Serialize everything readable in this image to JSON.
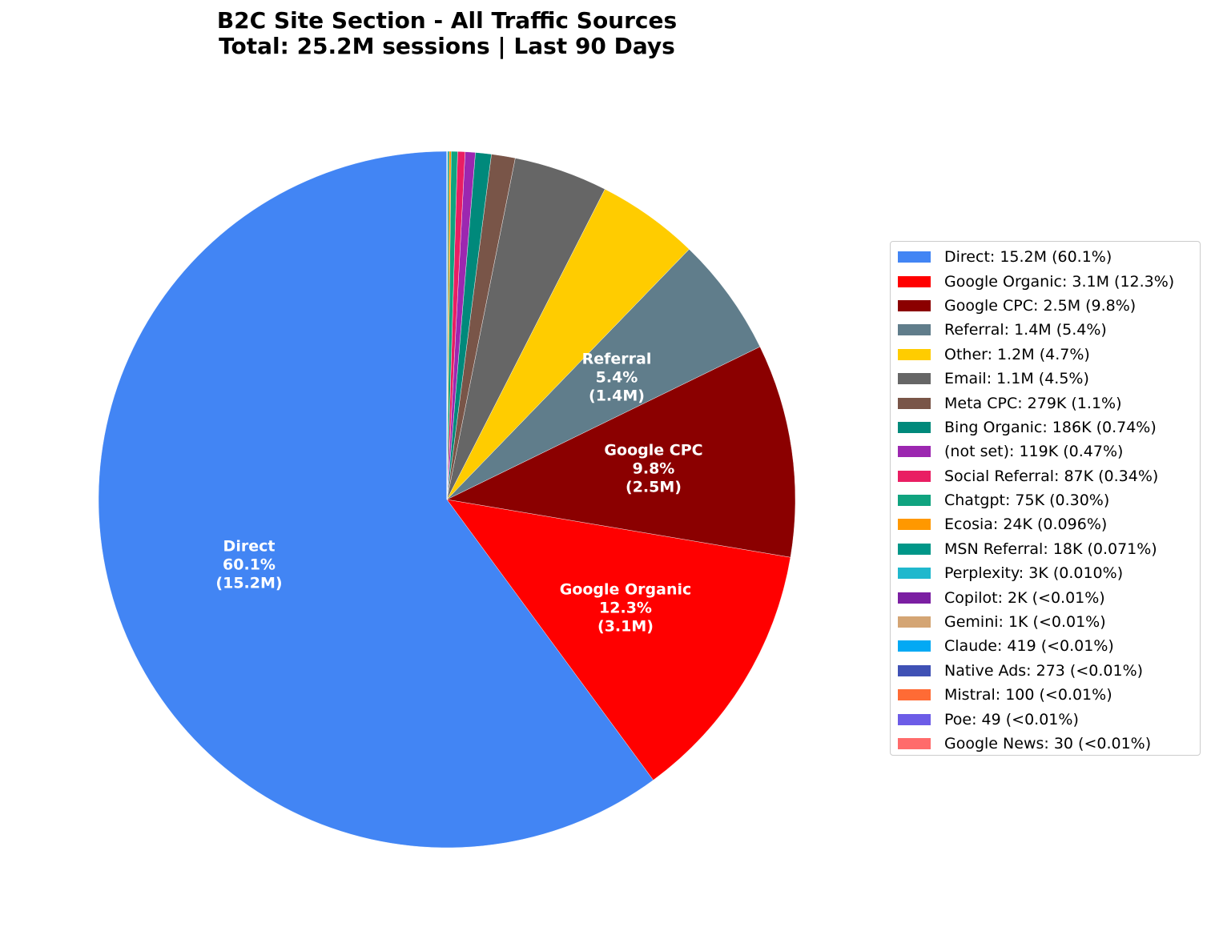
{
  "title": {
    "line1": "B2C Site Section - All Traffic Sources",
    "line2": "Total: 25.2M sessions | Last 90 Days"
  },
  "chart_data": {
    "type": "pie",
    "title": "B2C Site Section - All Traffic Sources\nTotal: 25.2M sessions | Last 90 Days",
    "total_sessions": "25.2M",
    "start_angle": 90,
    "direction": "counterclockwise",
    "legend_position": "right",
    "categories": [
      "Direct",
      "Google Organic",
      "Google CPC",
      "Referral",
      "Other",
      "Email",
      "Meta CPC",
      "Bing Organic",
      "(not set)",
      "Social Referral",
      "Chatgpt",
      "Ecosia",
      "MSN Referral",
      "Perplexity",
      "Copilot",
      "Gemini",
      "Claude",
      "Native Ads",
      "Mistral",
      "Poe",
      "Google News"
    ],
    "values": [
      15200000,
      3100000,
      2500000,
      1400000,
      1200000,
      1100000,
      279000,
      186000,
      119000,
      87000,
      75000,
      24000,
      18000,
      3000,
      2000,
      1000,
      419,
      273,
      100,
      49,
      30
    ],
    "percentages": [
      60.1,
      12.3,
      9.8,
      5.4,
      4.7,
      4.5,
      1.1,
      0.74,
      0.47,
      0.34,
      0.3,
      0.096,
      0.071,
      0.01,
      0.005,
      0.004,
      0.002,
      0.001,
      0.0004,
      0.0002,
      0.0001
    ],
    "colors": [
      "#4285F4",
      "#FF0000",
      "#8B0000",
      "#607D8B",
      "#FFCC00",
      "#666666",
      "#795548",
      "#00897B",
      "#9C27B0",
      "#E91E63",
      "#10A37F",
      "#FF9800",
      "#009688",
      "#20B8CD",
      "#7B1FA2",
      "#D4A574",
      "#03A9F4",
      "#3F51B5",
      "#FF6B35",
      "#6C5CE7",
      "#FF6B6B"
    ]
  },
  "slice_labels": [
    {
      "name": "Direct",
      "pct": "60.1%",
      "val": "(15.2M)"
    },
    {
      "name": "Google Organic",
      "pct": "12.3%",
      "val": "(3.1M)"
    },
    {
      "name": "Google CPC",
      "pct": "9.8%",
      "val": "(2.5M)"
    },
    {
      "name": "Referral",
      "pct": "5.4%",
      "val": "(1.4M)"
    }
  ],
  "legend": [
    {
      "label": "Direct: 15.2M (60.1%)",
      "color": "#4285F4"
    },
    {
      "label": "Google Organic: 3.1M (12.3%)",
      "color": "#FF0000"
    },
    {
      "label": "Google CPC: 2.5M (9.8%)",
      "color": "#8B0000"
    },
    {
      "label": "Referral: 1.4M (5.4%)",
      "color": "#607D8B"
    },
    {
      "label": "Other: 1.2M (4.7%)",
      "color": "#FFCC00"
    },
    {
      "label": "Email: 1.1M (4.5%)",
      "color": "#666666"
    },
    {
      "label": "Meta CPC: 279K (1.1%)",
      "color": "#795548"
    },
    {
      "label": "Bing Organic: 186K (0.74%)",
      "color": "#00897B"
    },
    {
      "label": "(not set): 119K (0.47%)",
      "color": "#9C27B0"
    },
    {
      "label": "Social Referral: 87K (0.34%)",
      "color": "#E91E63"
    },
    {
      "label": "Chatgpt: 75K (0.30%)",
      "color": "#10A37F"
    },
    {
      "label": "Ecosia: 24K (0.096%)",
      "color": "#FF9800"
    },
    {
      "label": "MSN Referral: 18K (0.071%)",
      "color": "#009688"
    },
    {
      "label": "Perplexity: 3K (0.010%)",
      "color": "#20B8CD"
    },
    {
      "label": "Copilot: 2K (<0.01%)",
      "color": "#7B1FA2"
    },
    {
      "label": "Gemini: 1K (<0.01%)",
      "color": "#D4A574"
    },
    {
      "label": "Claude: 419 (<0.01%)",
      "color": "#03A9F4"
    },
    {
      "label": "Native Ads: 273 (<0.01%)",
      "color": "#3F51B5"
    },
    {
      "label": "Mistral: 100 (<0.01%)",
      "color": "#FF6B35"
    },
    {
      "label": "Poe: 49 (<0.01%)",
      "color": "#6C5CE7"
    },
    {
      "label": "Google News: 30 (<0.01%)",
      "color": "#FF6B6B"
    }
  ]
}
